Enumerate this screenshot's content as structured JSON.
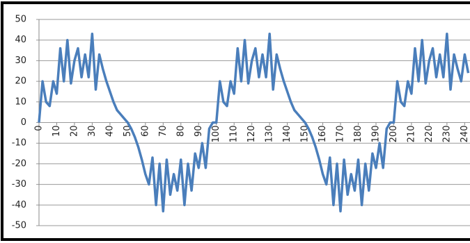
{
  "chart_data": {
    "type": "line",
    "x": [
      0,
      2,
      4,
      6,
      8,
      10,
      12,
      14,
      16,
      18,
      20,
      22,
      24,
      26,
      28,
      30,
      32,
      34,
      36,
      38,
      40,
      42,
      44,
      46,
      48,
      50,
      52,
      54,
      56,
      58,
      60,
      62,
      64,
      66,
      68,
      70,
      72,
      74,
      76,
      78,
      80,
      82,
      84,
      86,
      88,
      90,
      92,
      94,
      96,
      98,
      100,
      102,
      104,
      106,
      108,
      110,
      112,
      114,
      116,
      118,
      120,
      122,
      124,
      126,
      128,
      130,
      132,
      134,
      136,
      138,
      140,
      142,
      144,
      146,
      148,
      150,
      152,
      154,
      156,
      158,
      160,
      162,
      164,
      166,
      168,
      170,
      172,
      174,
      176,
      178,
      180,
      182,
      184,
      186,
      188,
      190,
      192,
      194,
      196,
      198,
      200,
      202,
      204,
      206,
      208,
      210,
      212,
      214,
      216,
      218,
      220,
      222,
      224,
      226,
      228,
      230,
      232,
      234,
      236,
      238,
      240,
      242
    ],
    "series": [
      {
        "color": "#4a7ebb",
        "values": [
          0,
          20,
          10,
          8,
          20,
          14,
          36,
          20,
          40,
          19,
          30,
          36,
          22,
          33,
          22,
          43,
          16,
          33,
          26,
          20,
          15,
          10,
          6,
          4,
          2,
          0,
          -3,
          -7,
          -12,
          -18,
          -25,
          -30,
          -17,
          -40,
          -20,
          -43,
          -18,
          -35,
          -25,
          -33,
          -18,
          -40,
          -20,
          -33,
          -15,
          -22,
          -10,
          -22,
          -3,
          0,
          0,
          20,
          10,
          8,
          20,
          14,
          36,
          20,
          40,
          19,
          30,
          36,
          22,
          33,
          22,
          43,
          16,
          33,
          26,
          20,
          15,
          10,
          6,
          4,
          2,
          0,
          -3,
          -7,
          -12,
          -18,
          -25,
          -30,
          -17,
          -40,
          -20,
          -43,
          -18,
          -35,
          -25,
          -33,
          -18,
          -40,
          -20,
          -33,
          -15,
          -22,
          -10,
          -22,
          -3,
          0,
          0,
          20,
          10,
          8,
          20,
          14,
          36,
          20,
          40,
          19,
          30,
          36,
          22,
          33,
          22,
          43,
          16,
          33,
          26,
          20,
          33,
          24
        ]
      }
    ],
    "xlim": [
      0,
      243
    ],
    "xticks": [
      0,
      10,
      20,
      30,
      40,
      50,
      60,
      70,
      80,
      90,
      100,
      110,
      120,
      130,
      140,
      150,
      160,
      170,
      180,
      190,
      200,
      210,
      220,
      230,
      240
    ],
    "ylim": [
      -50,
      50
    ],
    "yticks": [
      -50,
      -40,
      -30,
      -20,
      -10,
      0,
      10,
      20,
      30,
      40,
      50
    ],
    "grid": true
  }
}
